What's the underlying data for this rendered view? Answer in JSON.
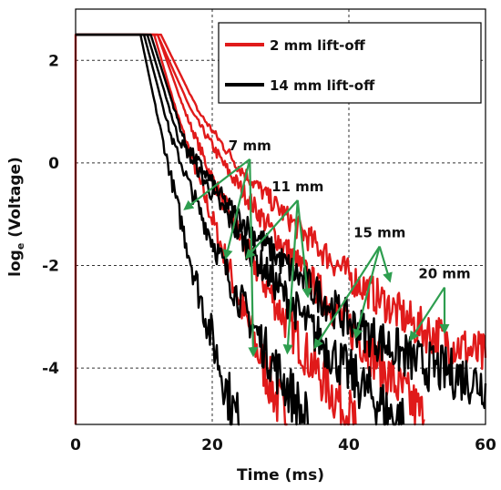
{
  "chart_data": {
    "type": "line",
    "xlabel": "Time (ms)",
    "ylabel_main": "log",
    "ylabel_sub": "e",
    "ylabel_rest": " (Voltage)",
    "xlim": [
      0,
      60
    ],
    "ylim": [
      -5.1,
      3.0
    ],
    "x_ticks": [
      0,
      20,
      40,
      60
    ],
    "y_ticks": [
      2,
      0,
      -2,
      -4
    ],
    "x_tick_labels": [
      "0",
      "20",
      "40",
      "60"
    ],
    "y_tick_labels": [
      "2",
      "0",
      "-2",
      "-4"
    ],
    "grid": true,
    "legend_position": "top-right",
    "legend": [
      {
        "label": "2 mm lift-off",
        "color": "#e01a1a"
      },
      {
        "label": "14 mm lift-off",
        "color": "#000000"
      }
    ],
    "series": [
      {
        "color": "#e01a1a",
        "group": "2 mm",
        "gap": "7 mm",
        "points": [
          [
            0,
            -5.1
          ],
          [
            0,
            2.5
          ],
          [
            11.5,
            2.5
          ],
          [
            15,
            0.9
          ],
          [
            18,
            -0.3
          ],
          [
            21,
            -1.5
          ],
          [
            24,
            -2.7
          ],
          [
            27,
            -3.8
          ],
          [
            30,
            -4.8
          ],
          [
            31,
            -5.1
          ]
        ]
      },
      {
        "color": "#e01a1a",
        "group": "2 mm",
        "gap": "11 mm",
        "points": [
          [
            0,
            2.5
          ],
          [
            12,
            2.5
          ],
          [
            16,
            1.0
          ],
          [
            20,
            -0.3
          ],
          [
            25,
            -1.7
          ],
          [
            30,
            -2.9
          ],
          [
            35,
            -4.0
          ],
          [
            40,
            -4.9
          ],
          [
            41,
            -5.1
          ]
        ]
      },
      {
        "color": "#e01a1a",
        "group": "2 mm",
        "gap": "15 mm",
        "points": [
          [
            0,
            2.5
          ],
          [
            12,
            2.5
          ],
          [
            17,
            1.0
          ],
          [
            22,
            -0.1
          ],
          [
            28,
            -1.2
          ],
          [
            35,
            -2.4
          ],
          [
            42,
            -3.5
          ],
          [
            48,
            -4.5
          ],
          [
            51,
            -5.0
          ]
        ]
      },
      {
        "color": "#e01a1a",
        "group": "2 mm",
        "gap": "20 mm",
        "points": [
          [
            0,
            2.5
          ],
          [
            12.5,
            2.5
          ],
          [
            18,
            1.0
          ],
          [
            24,
            -0.1
          ],
          [
            32,
            -1.2
          ],
          [
            40,
            -2.2
          ],
          [
            50,
            -3.2
          ],
          [
            60,
            -3.8
          ]
        ]
      },
      {
        "color": "#000000",
        "group": "14 mm",
        "gap": "7 mm",
        "points": [
          [
            0,
            2.5
          ],
          [
            9.5,
            2.5
          ],
          [
            12,
            0.9
          ],
          [
            15,
            -0.9
          ],
          [
            18,
            -2.5
          ],
          [
            21,
            -3.9
          ],
          [
            23,
            -4.8
          ],
          [
            24,
            -5.1
          ]
        ]
      },
      {
        "color": "#000000",
        "group": "14 mm",
        "gap": "11 mm",
        "points": [
          [
            0,
            2.5
          ],
          [
            10,
            2.5
          ],
          [
            14,
            0.5
          ],
          [
            18,
            -0.9
          ],
          [
            23,
            -2.4
          ],
          [
            28,
            -3.7
          ],
          [
            32,
            -4.6
          ],
          [
            34,
            -5.1
          ]
        ]
      },
      {
        "color": "#000000",
        "group": "14 mm",
        "gap": "15 mm",
        "points": [
          [
            0,
            2.5
          ],
          [
            10.5,
            2.5
          ],
          [
            15,
            0.5
          ],
          [
            20,
            -0.6
          ],
          [
            26,
            -1.8
          ],
          [
            33,
            -3.0
          ],
          [
            40,
            -4.1
          ],
          [
            46,
            -4.9
          ],
          [
            48,
            -5.1
          ]
        ]
      },
      {
        "color": "#000000",
        "group": "14 mm",
        "gap": "20 mm",
        "points": [
          [
            0,
            2.5
          ],
          [
            11,
            2.5
          ],
          [
            16,
            0.4
          ],
          [
            22,
            -0.8
          ],
          [
            30,
            -1.9
          ],
          [
            40,
            -3.1
          ],
          [
            50,
            -3.9
          ],
          [
            60,
            -4.3
          ]
        ]
      }
    ],
    "annotations": [
      {
        "text": "7 mm",
        "x": 25.5,
        "y": 0.25,
        "targets": [
          [
            16,
            -0.9
          ],
          [
            22,
            -1.85
          ],
          [
            26,
            -3.75
          ]
        ]
      },
      {
        "text": "11 mm",
        "x": 32.5,
        "y": -0.55,
        "targets": [
          [
            25,
            -1.85
          ],
          [
            31,
            -3.7
          ],
          [
            34,
            -2.6
          ]
        ]
      },
      {
        "text": "15 mm",
        "x": 44.5,
        "y": -1.45,
        "targets": [
          [
            35,
            -3.6
          ],
          [
            41,
            -3.4
          ],
          [
            46,
            -2.3
          ]
        ]
      },
      {
        "text": "20 mm",
        "x": 54,
        "y": -2.25,
        "targets": [
          [
            49,
            -3.45
          ],
          [
            54,
            -3.3
          ]
        ]
      }
    ]
  },
  "colors": {
    "arrow": "#2e9e4f",
    "grid": "#333333"
  }
}
